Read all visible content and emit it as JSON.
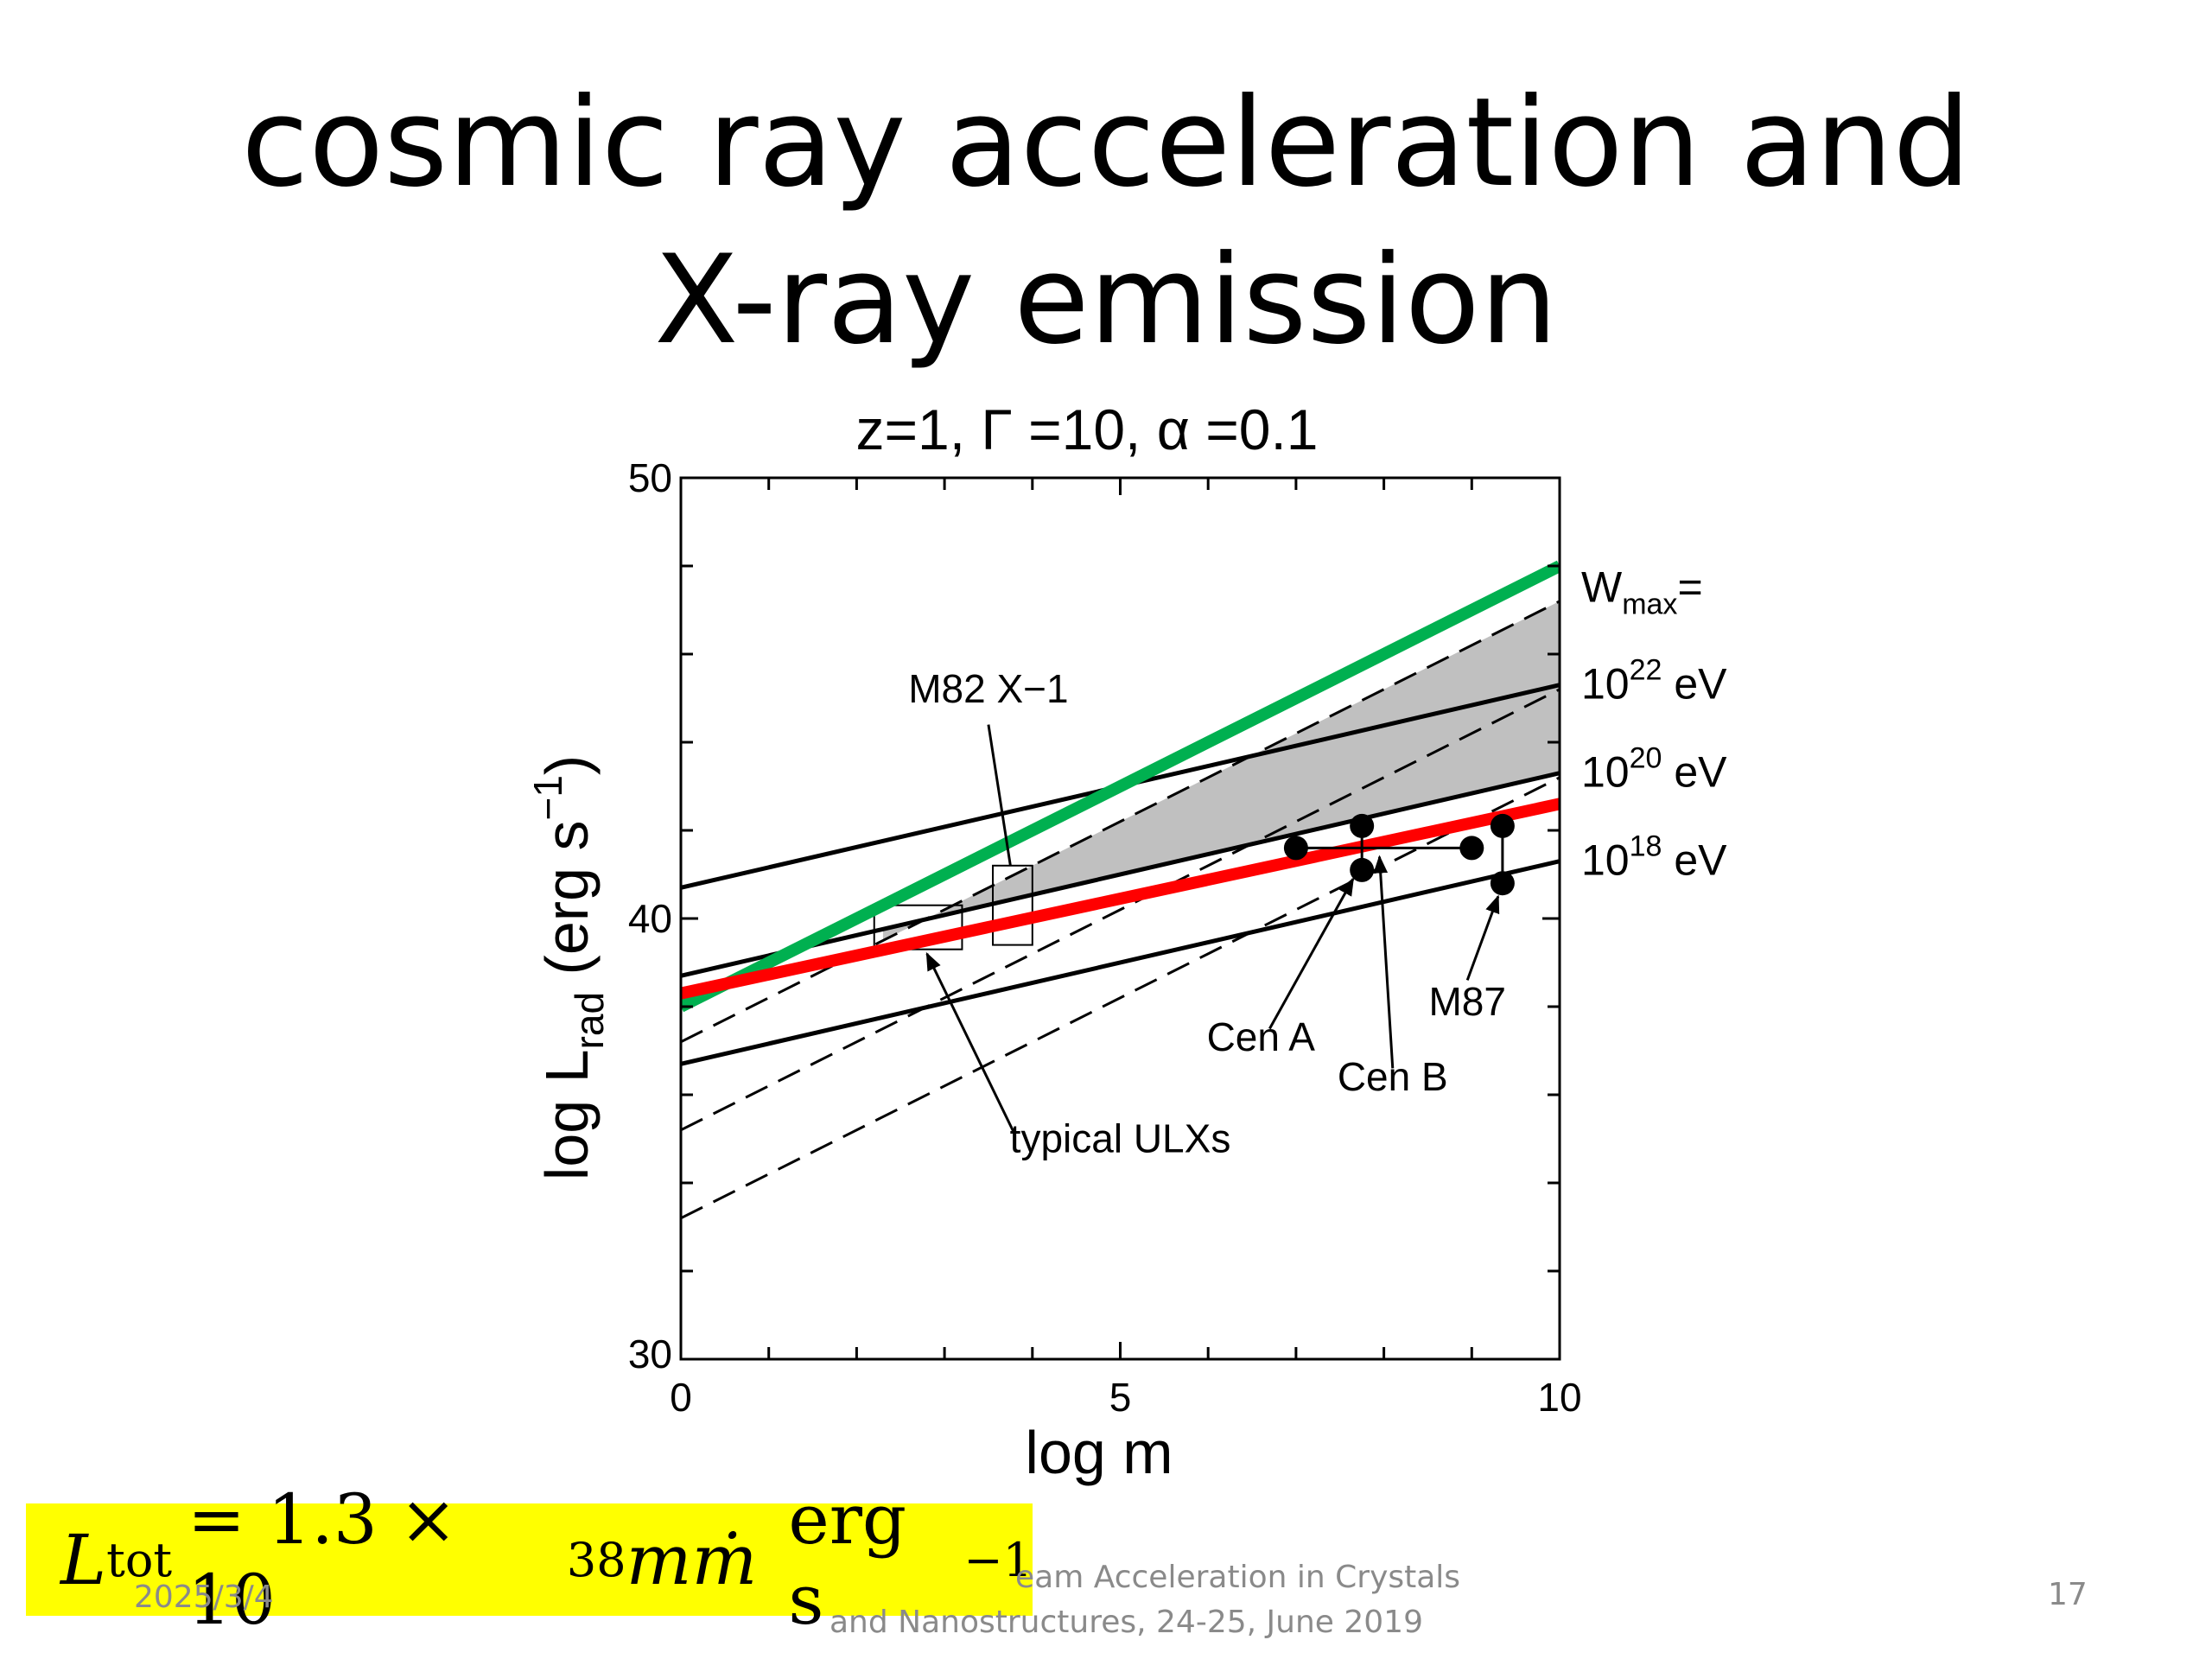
{
  "slide": {
    "title_line1": "cosmic ray acceleration and",
    "title_line2": "X-ray emission",
    "footer_date": "2025/3/4",
    "footer_center_line1": "eam Acceleration in Crystals",
    "footer_center_line2": "and Nanostructures, 24-25, June 2019",
    "page_number": "17",
    "formula": {
      "lhs": "L",
      "lhs_sub": "tot",
      "rhs_prefix": "= 1.3 × 10",
      "rhs_exp": "38",
      "rhs_var": "mṁ",
      "unit": "erg s",
      "unit_exp": "−1"
    }
  },
  "chart_data": {
    "type": "line",
    "title": "z=1,  Γ =10,  α =0.1",
    "xlabel": "log m",
    "ylabel": "log L",
    "ylabel_sub": "rad",
    "ylabel_unit": "(erg s",
    "ylabel_unit_exp": "−1",
    "ylabel_unit_close": ")",
    "xlim": [
      0,
      10
    ],
    "ylim": [
      30,
      50
    ],
    "xticks_labeled": [
      0,
      5,
      10
    ],
    "yticks_labeled": [
      30,
      40,
      50
    ],
    "xminor_step": 1,
    "yminor_step": 2,
    "grid": false,
    "lines": [
      {
        "style": "solid",
        "color": "#000000",
        "x": [
          0,
          10
        ],
        "y": [
          40.7,
          45.3
        ]
      },
      {
        "style": "solid",
        "color": "#000000",
        "x": [
          0,
          10
        ],
        "y": [
          38.7,
          43.3
        ]
      },
      {
        "style": "solid",
        "color": "#000000",
        "x": [
          0,
          10
        ],
        "y": [
          36.7,
          41.3
        ]
      },
      {
        "style": "dashed",
        "color": "#000000",
        "x": [
          0,
          10
        ],
        "y": [
          37.2,
          47.2
        ]
      },
      {
        "style": "dashed",
        "color": "#000000",
        "x": [
          0,
          10
        ],
        "y": [
          35.2,
          45.2
        ]
      },
      {
        "style": "dashed",
        "color": "#000000",
        "x": [
          0,
          10
        ],
        "y": [
          33.2,
          43.2
        ]
      },
      {
        "style": "thick",
        "color": "#00b050",
        "x": [
          0,
          10
        ],
        "y": [
          38.0,
          48.0
        ]
      },
      {
        "style": "thick",
        "color": "#ff0000",
        "x": [
          0,
          10
        ],
        "y": [
          38.3,
          42.6
        ]
      }
    ],
    "shaded_region": {
      "color": "#c0c0c0",
      "x": [
        2.3,
        10,
        10,
        2.3
      ],
      "y": [
        39.5,
        47.2,
        43.3,
        39.8
      ]
    },
    "boxes": [
      {
        "x0": 2.2,
        "x1": 3.2,
        "y0": 39.3,
        "y1": 40.3
      },
      {
        "x0": 3.55,
        "x1": 4.0,
        "y0": 39.4,
        "y1": 41.2
      }
    ],
    "points": [
      {
        "x": 7.0,
        "y": 41.6
      },
      {
        "x": 7.75,
        "y": 42.1
      },
      {
        "x": 7.75,
        "y": 41.1
      },
      {
        "x": 9.0,
        "y": 41.6
      },
      {
        "x": 9.35,
        "y": 42.1
      },
      {
        "x": 9.35,
        "y": 40.8
      }
    ],
    "point_links": [
      {
        "x": [
          7.0,
          7.75
        ],
        "y": [
          41.6,
          41.6
        ]
      },
      {
        "x": [
          7.75,
          7.75
        ],
        "y": [
          42.1,
          41.1
        ]
      },
      {
        "x": [
          7.75,
          9.0
        ],
        "y": [
          41.6,
          41.6
        ]
      },
      {
        "x": [
          9.35,
          9.35
        ],
        "y": [
          42.1,
          40.8
        ]
      }
    ],
    "annotations": [
      {
        "text": "M82 X−1",
        "x": 3.5,
        "y": 44.9,
        "ax": 3.5,
        "ay": 44.4,
        "tx": 3.75,
        "ty": 41.2,
        "arrow": false
      },
      {
        "text": "typical ULXs",
        "x": 5.0,
        "y": 34.7,
        "ax": 3.8,
        "ay": 35.1,
        "tx": 2.8,
        "ty": 39.2,
        "arrow": true
      },
      {
        "text": "Cen A",
        "x": 6.6,
        "y": 37.0,
        "ax": 6.7,
        "ay": 37.5,
        "tx": 7.65,
        "ty": 40.9,
        "arrow": true
      },
      {
        "text": "Cen B",
        "x": 8.1,
        "y": 36.1,
        "ax": 8.1,
        "ay": 36.6,
        "tx": 7.95,
        "ty": 41.4,
        "arrow": true
      },
      {
        "text": "M87",
        "x": 8.95,
        "y": 37.8,
        "ax": 8.95,
        "ay": 38.6,
        "tx": 9.3,
        "ty": 40.5,
        "arrow": true
      }
    ],
    "right_labels": [
      {
        "base": "W",
        "sub": "max",
        "after": "=",
        "y": 47.5
      },
      {
        "base": "10",
        "sup": "22",
        "after": " eV",
        "y": 45.3
      },
      {
        "base": "10",
        "sup": "20",
        "after": " eV",
        "y": 43.3
      },
      {
        "base": "10",
        "sup": "18",
        "after": " eV",
        "y": 41.3
      }
    ]
  }
}
